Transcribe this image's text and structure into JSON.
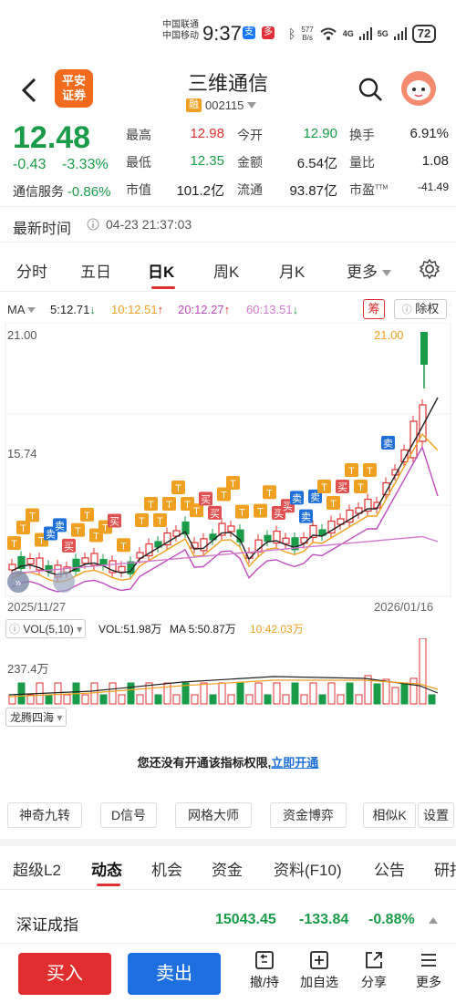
{
  "status": {
    "carrier1": "中国联通",
    "carrier2": "中国移动",
    "time": "9:37",
    "speed_top": "577",
    "speed_bottom": "B/s",
    "battery": "72",
    "net1": "4G",
    "net2": "5G",
    "alipay": "支",
    "app2": "多"
  },
  "header": {
    "logo_line1": "平安",
    "logo_line2": "证券",
    "stock_name": "三维通信",
    "tag": "融",
    "code": "002115"
  },
  "quote": {
    "price": "12.48",
    "change": "-0.43",
    "change_pct": "-3.33%",
    "sector_name": "通信服务",
    "sector_pct": "-0.86%",
    "stats": [
      {
        "label": "最高",
        "value": "12.98",
        "color": "#e03030"
      },
      {
        "label": "今开",
        "value": "12.90",
        "color": "#1a9b48"
      },
      {
        "label": "换手",
        "value": "6.91%",
        "color": "#222"
      },
      {
        "label": "最低",
        "value": "12.35",
        "color": "#1a9b48"
      },
      {
        "label": "金额",
        "value": "6.54亿",
        "color": "#222"
      },
      {
        "label": "量比",
        "value": "1.08",
        "color": "#222"
      },
      {
        "label": "市值",
        "value": "101.2亿",
        "color": "#222"
      },
      {
        "label": "流通",
        "value": "93.87亿",
        "color": "#222"
      },
      {
        "label": "市盈",
        "value": "-41.49",
        "color": "#222"
      }
    ],
    "pe_sup": "TTM"
  },
  "timeline": {
    "label": "最新时间",
    "value": "04-23 21:37:03"
  },
  "tabs": [
    {
      "label": "分时"
    },
    {
      "label": "五日"
    },
    {
      "label": "日K"
    },
    {
      "label": "周K"
    },
    {
      "label": "月K"
    },
    {
      "label": "更多"
    }
  ],
  "ma": {
    "label": "MA",
    "ma5": "5:12.71",
    "ma10": "10:12.51",
    "ma20": "20:12.27",
    "ma60": "60:13.51",
    "chou": "筹",
    "chuquan": "除权"
  },
  "kchart": {
    "y_top": "21.00",
    "y_mid": "15.74",
    "date_left": "2025/11/27",
    "date_right": "2026/01/16",
    "last_high": "21.00",
    "signals": [
      {
        "text": "T",
        "kind": "t"
      },
      {
        "text": "T",
        "kind": "t"
      },
      {
        "text": "T",
        "kind": "t"
      },
      {
        "text": "T",
        "kind": "t"
      },
      {
        "text": "卖",
        "kind": "s"
      },
      {
        "text": "卖",
        "kind": "s"
      },
      {
        "text": "买",
        "kind": "b"
      },
      {
        "text": "T",
        "kind": "t"
      },
      {
        "text": "T",
        "kind": "t"
      },
      {
        "text": "T",
        "kind": "t"
      },
      {
        "text": "T",
        "kind": "t"
      },
      {
        "text": "买",
        "kind": "b"
      },
      {
        "text": "T",
        "kind": "t"
      },
      {
        "text": "T",
        "kind": "t"
      },
      {
        "text": "T",
        "kind": "t"
      },
      {
        "text": "T",
        "kind": "t"
      },
      {
        "text": "T",
        "kind": "t"
      },
      {
        "text": "T",
        "kind": "t"
      },
      {
        "text": "T",
        "kind": "t"
      },
      {
        "text": "T",
        "kind": "t"
      },
      {
        "text": "买",
        "kind": "b"
      },
      {
        "text": "买",
        "kind": "b"
      },
      {
        "text": "T",
        "kind": "t"
      },
      {
        "text": "T",
        "kind": "t"
      },
      {
        "text": "T",
        "kind": "t"
      },
      {
        "text": "T",
        "kind": "t"
      },
      {
        "text": "T",
        "kind": "t"
      },
      {
        "text": "买",
        "kind": "b"
      },
      {
        "text": "买",
        "kind": "b"
      },
      {
        "text": "卖",
        "kind": "s"
      },
      {
        "text": "卖",
        "kind": "s"
      },
      {
        "text": "卖",
        "kind": "s"
      },
      {
        "text": "T",
        "kind": "t"
      },
      {
        "text": "T",
        "kind": "t"
      },
      {
        "text": "买",
        "kind": "b"
      },
      {
        "text": "T",
        "kind": "t"
      },
      {
        "text": "T",
        "kind": "t"
      },
      {
        "text": "T",
        "kind": "t"
      },
      {
        "text": "卖",
        "kind": "s"
      }
    ]
  },
  "vol": {
    "btn": "VOL(5,10)",
    "vol": "VOL:51.98万",
    "ma5": "MA 5:50.87万",
    "ma10": "10:42.03万",
    "y_top": "237.4万"
  },
  "indicator": {
    "name": "龙腾四海",
    "notice": "您还没有开通该指标权限,",
    "link": "立即开通"
  },
  "tools": [
    {
      "label": "神奇九转"
    },
    {
      "label": "D信号"
    },
    {
      "label": "网格大师"
    },
    {
      "label": "资金博弈"
    },
    {
      "label": "相似K"
    },
    {
      "label": "设置"
    }
  ],
  "btabs": [
    {
      "label": "超级L2"
    },
    {
      "label": "动态"
    },
    {
      "label": "机会"
    },
    {
      "label": "资金"
    },
    {
      "label": "资料(F10)"
    },
    {
      "label": "公告"
    },
    {
      "label": "研报"
    }
  ],
  "index": {
    "name": "深证成指",
    "value": "15043.45",
    "change": "-133.84",
    "pct": "-0.88%"
  },
  "bottom": {
    "buy": "买入",
    "sell": "卖出",
    "actions": [
      {
        "label": "撤/持"
      },
      {
        "label": "加自选"
      },
      {
        "label": "分享"
      },
      {
        "label": "更多"
      }
    ]
  }
}
